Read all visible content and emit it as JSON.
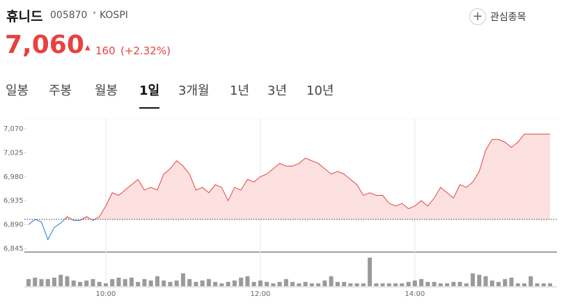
{
  "header": {
    "name": "휴니드",
    "code": "005870",
    "market": "KOSPI",
    "watch": "관심종목"
  },
  "price": {
    "current": "7,060",
    "change": "160",
    "change_pct": "(+2.32%)"
  },
  "tabs": {
    "items": [
      "일봉",
      "주봉",
      "월봉",
      "1일",
      "3개월",
      "1년",
      "3년",
      "10년"
    ],
    "active": 3
  },
  "chart_data": {
    "type": "line",
    "categories": [
      null,
      null,
      null,
      null,
      null,
      null,
      null,
      null,
      null,
      null,
      null,
      null,
      "10:00",
      null,
      null,
      null,
      null,
      null,
      null,
      null,
      null,
      null,
      null,
      null,
      null,
      null,
      null,
      null,
      null,
      null,
      null,
      null,
      null,
      null,
      null,
      null,
      "12:00",
      null,
      null,
      null,
      null,
      null,
      null,
      null,
      null,
      null,
      null,
      null,
      null,
      null,
      null,
      null,
      null,
      null,
      null,
      null,
      null,
      null,
      null,
      null,
      "14:00",
      null,
      null,
      null,
      null,
      null,
      null,
      null,
      null,
      null,
      null,
      null,
      null,
      null,
      null,
      null,
      null,
      null,
      null,
      null,
      null,
      null
    ],
    "series": [
      {
        "name": "price",
        "color": "#e8413e",
        "below_color": "#1d7ad6",
        "fill": "#fde1e1",
        "values": [
          6890,
          6900,
          6895,
          6862,
          6885,
          6893,
          6905,
          6898,
          6898,
          6905,
          6898,
          6905,
          6925,
          6950,
          6945,
          6955,
          6965,
          6975,
          6955,
          6960,
          6955,
          6985,
          6995,
          7010,
          7000,
          6985,
          6955,
          6960,
          6950,
          6965,
          6960,
          6935,
          6960,
          6955,
          6975,
          6970,
          6980,
          6985,
          6995,
          7005,
          7000,
          7000,
          7005,
          7015,
          7010,
          7005,
          6995,
          6985,
          6990,
          6985,
          6975,
          6965,
          6945,
          6950,
          6945,
          6945,
          6930,
          6925,
          6930,
          6920,
          6925,
          6935,
          6925,
          6940,
          6960,
          6950,
          6940,
          6965,
          6960,
          6970,
          6990,
          7030,
          7050,
          7050,
          7045,
          7035,
          7045,
          7060,
          7060,
          7060,
          7060,
          7060
        ]
      },
      {
        "name": "volume",
        "color": "#9a9a9a",
        "values": [
          10,
          12,
          10,
          10,
          12,
          16,
          14,
          8,
          6,
          8,
          10,
          6,
          4,
          10,
          12,
          10,
          12,
          6,
          10,
          8,
          14,
          8,
          6,
          8,
          18,
          10,
          6,
          8,
          10,
          6,
          4,
          6,
          8,
          12,
          14,
          6,
          8,
          6,
          4,
          6,
          10,
          6,
          4,
          6,
          4,
          4,
          8,
          14,
          6,
          6,
          4,
          4,
          4,
          40,
          4,
          4,
          4,
          4,
          4,
          6,
          8,
          10,
          6,
          6,
          4,
          4,
          6,
          6,
          4,
          18,
          16,
          14,
          8,
          6,
          10,
          12,
          4,
          4,
          14,
          4,
          4,
          4
        ]
      }
    ],
    "reference_line": 6900,
    "ylim": [
      6845,
      7070
    ],
    "yticks": [
      {
        "value": 6845,
        "label": "6,845"
      },
      {
        "value": 6890,
        "label": "6,890"
      },
      {
        "value": 6935,
        "label": "6,935"
      },
      {
        "value": 6980,
        "label": "6,980"
      },
      {
        "value": 7025,
        "label": "7,025"
      },
      {
        "value": 7070,
        "label": "7,070"
      }
    ],
    "volume_ylim": [
      0,
      40
    ]
  }
}
